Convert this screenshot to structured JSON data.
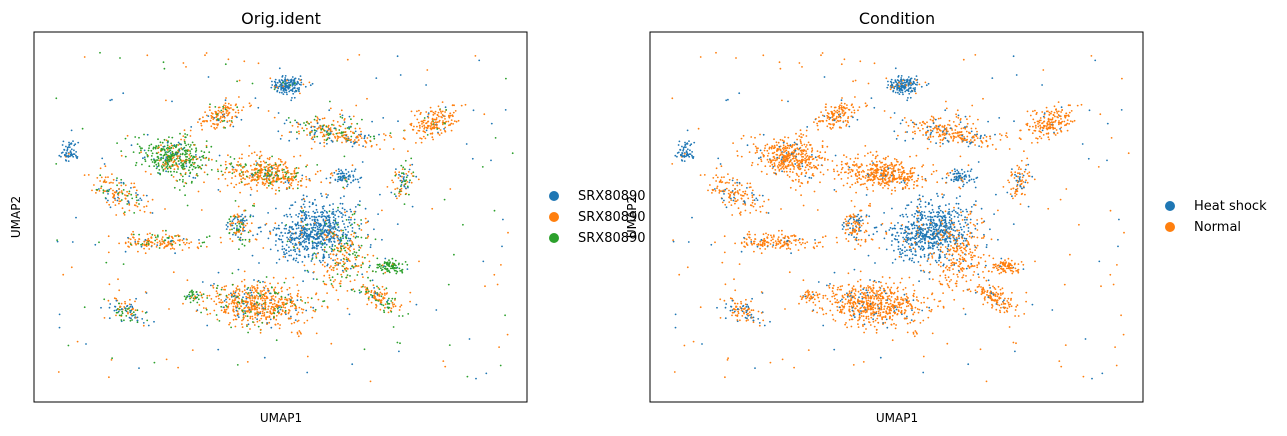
{
  "colors": {
    "blue": "#1f77b4",
    "orange": "#ff7f0e",
    "green": "#2ca02c",
    "frame": "#000000",
    "background": "#ffffff"
  },
  "chart_data": [
    {
      "type": "scatter",
      "title": "Orig.ident",
      "xlabel": "UMAP1",
      "ylabel": "UMAP2",
      "ticks": "none",
      "grid": false,
      "legend_position": "right",
      "legend": [
        {
          "label": "SRX80890",
          "color": "#1f77b4"
        },
        {
          "label": "SRX80890",
          "color": "#ff7f0e"
        },
        {
          "label": "SRX80890",
          "color": "#2ca02c"
        }
      ],
      "note": "Dense UMAP embedding of single cells; thousands of points, reproduced as point clouds."
    },
    {
      "type": "scatter",
      "title": "Condition",
      "xlabel": "UMAP1",
      "ylabel": "UMAP2",
      "ticks": "none",
      "grid": false,
      "legend_position": "right",
      "legend": [
        {
          "label": "Heat shock",
          "color": "#1f77b4"
        },
        {
          "label": "Normal",
          "color": "#ff7f0e"
        }
      ]
    }
  ]
}
